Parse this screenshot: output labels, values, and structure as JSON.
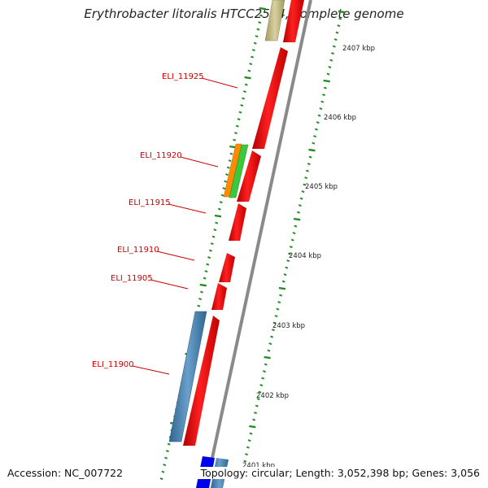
{
  "title": "Erythrobacter litoralis HTCC2594, complete genome",
  "footer": {
    "accession_label": "Accession:",
    "accession": "NC_007722",
    "topology_label": "Topology:",
    "topology": "circular",
    "length_label": "Length:",
    "length": "3,052,398 bp",
    "genes_label": "Genes:",
    "genes": "3,056"
  },
  "scale_labels": [
    "2407 kbp",
    "2406 kbp",
    "2405 kbp",
    "2404 kbp",
    "2403 kbp",
    "2402 kbp",
    "2401 kbp"
  ],
  "gene_labels": [
    "ELI_11925",
    "ELI_11920",
    "ELI_11915",
    "ELI_11910",
    "ELI_11905",
    "ELI_11900"
  ],
  "colors": {
    "cds_forward": "#ff0000",
    "backbone": "#808080",
    "tick": "#228b22",
    "label": "#cc0000",
    "trna": "#ff8c00",
    "rrna": "#32cd32",
    "reverse": "#4682b4",
    "blue": "#0000ff",
    "khaki": "#c8c08a"
  }
}
